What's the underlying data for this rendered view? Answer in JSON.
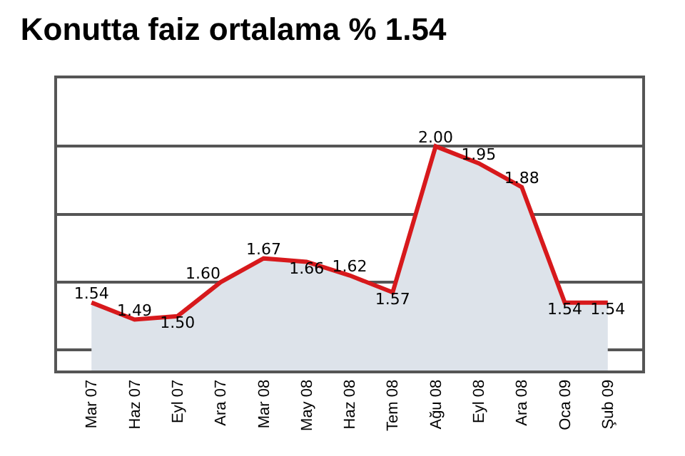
{
  "chart_data": {
    "type": "area",
    "title": "Konutta faiz ortalama % 1.54",
    "categories": [
      "Mar 07",
      "Haz 07",
      "Eyl 07",
      "Ara 07",
      "Mar 08",
      "May 08",
      "Haz 08",
      "Tem 08",
      "Ağu 08",
      "Eyl 08",
      "Ara 08",
      "Oca 09",
      "Şub 09"
    ],
    "series": [
      {
        "color": "#d7191c",
        "values": [
          1.54,
          1.49,
          1.5,
          1.6,
          1.67,
          1.66,
          1.62,
          1.57,
          2.0,
          1.95,
          1.88,
          1.54,
          1.54
        ],
        "value_labels": [
          "1.54",
          "1.49",
          "1.50",
          "1.60",
          "1.67",
          "1.66",
          "1.62",
          "1.57",
          "2.00",
          "1.95",
          "1.88",
          "1.54",
          "1.54"
        ]
      }
    ],
    "grid": "y",
    "tick_labels": "x",
    "marker": "none",
    "line_style": "solid"
  }
}
